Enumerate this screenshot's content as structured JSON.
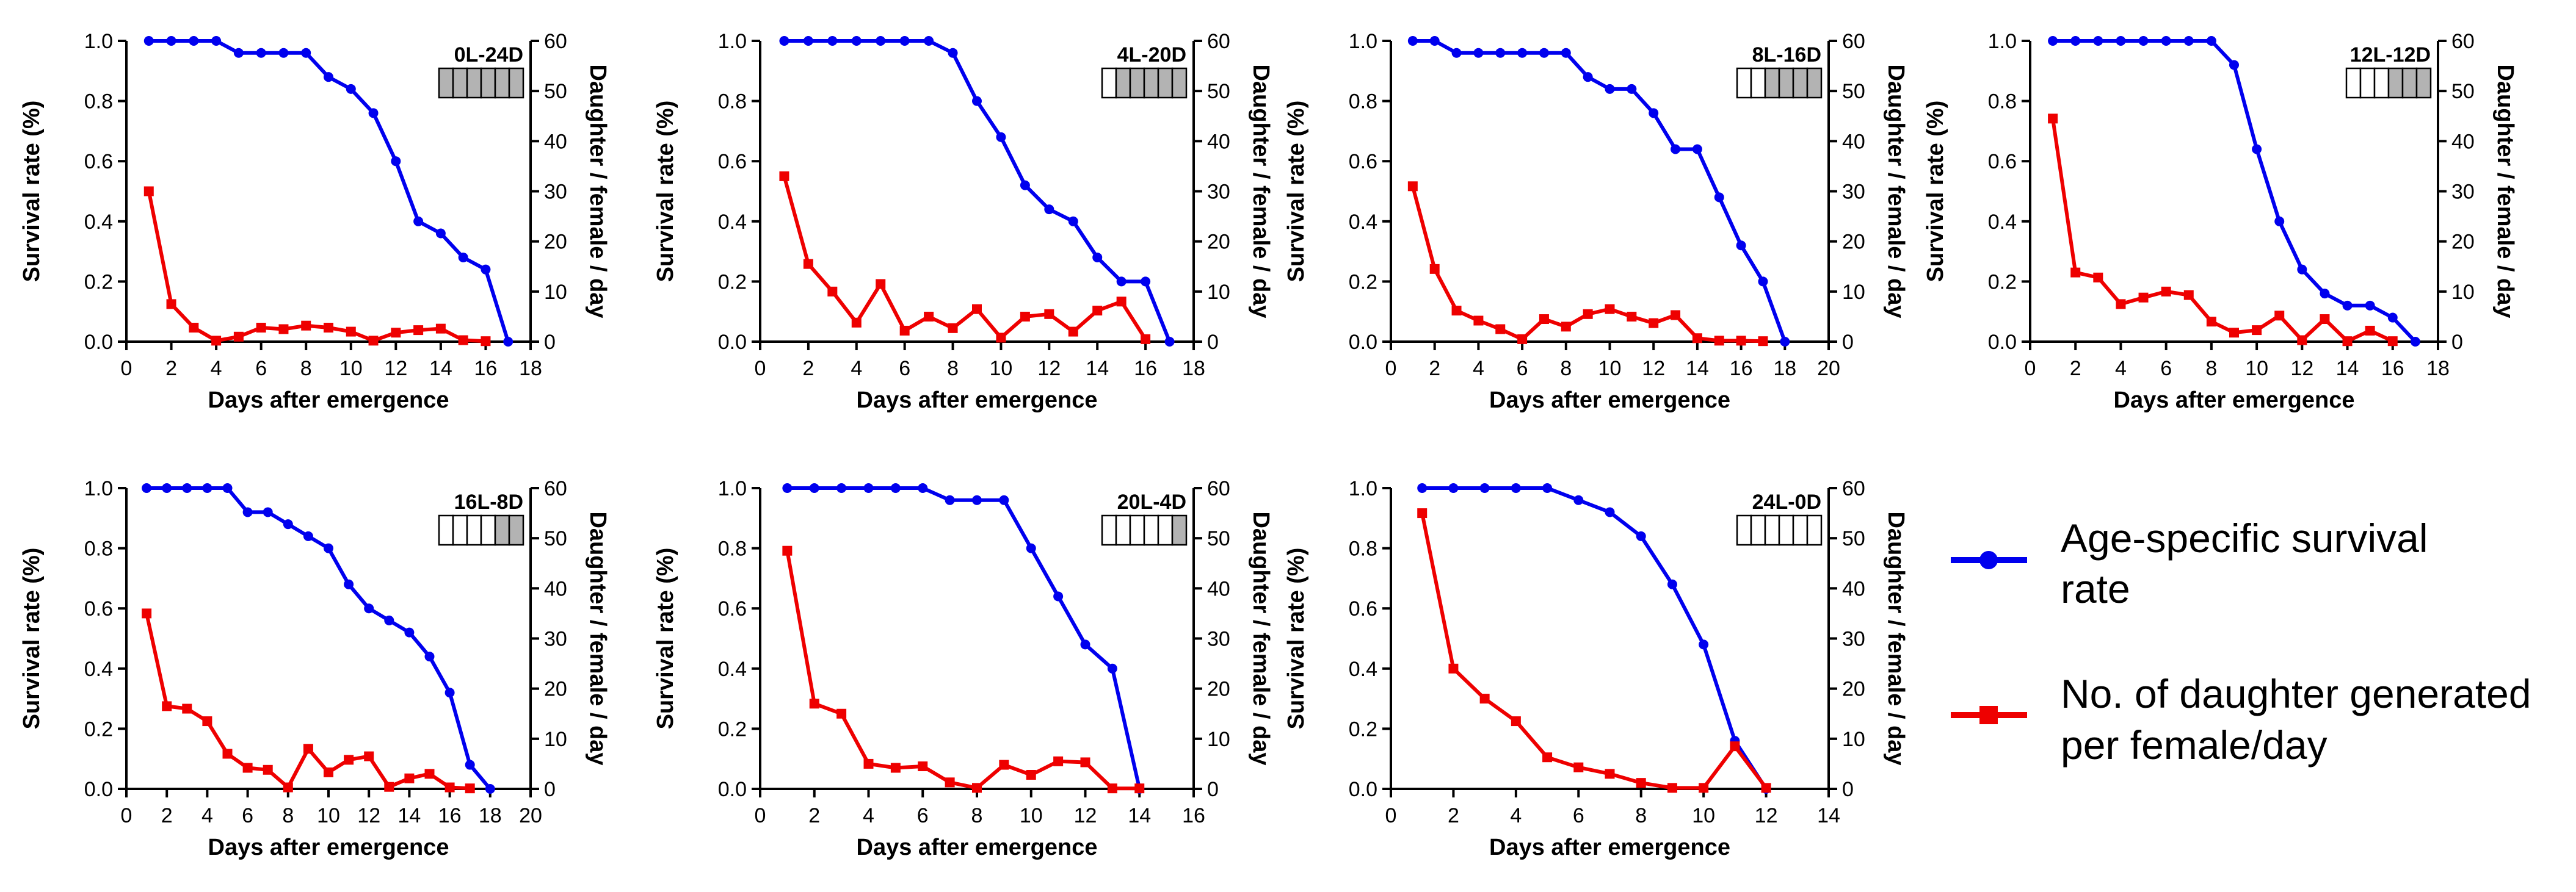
{
  "colors": {
    "survival": "#0000ee",
    "daughters": "#ee0000",
    "axis": "#000000",
    "dark": "#b3b3b3",
    "light": "#ffffff"
  },
  "legend": {
    "survival_lines": [
      "Age-specific survival",
      "rate"
    ],
    "daughters_lines": [
      "No. of daughter generated",
      "per female/day"
    ]
  },
  "chart_data": [
    {
      "type": "line",
      "photoperiod": "0L-24D",
      "light_hours": 0,
      "x_label": "Days after emergence",
      "y_label_left": "Survival rate (%)",
      "y_label_right": "Daughter / female / day",
      "xlim": [
        0,
        18
      ],
      "x_ticks": [
        0,
        2,
        4,
        6,
        8,
        10,
        12,
        14,
        16,
        18
      ],
      "ylim_left": [
        0,
        1.0
      ],
      "y_ticks_left": [
        "0.0",
        "0.2",
        "0.4",
        "0.6",
        "0.8",
        "1.0"
      ],
      "ylim_right": [
        0,
        60
      ],
      "y_ticks_right": [
        0,
        10,
        20,
        30,
        40,
        50,
        60
      ],
      "series": [
        {
          "name": "Age-specific survival rate",
          "axis": "left",
          "marker": "circle",
          "x": [
            1,
            2,
            3,
            4,
            5,
            6,
            7,
            8,
            9,
            10,
            11,
            12,
            13,
            14,
            15,
            16,
            17
          ],
          "y": [
            1.0,
            1.0,
            1.0,
            1.0,
            0.96,
            0.96,
            0.96,
            0.96,
            0.88,
            0.84,
            0.76,
            0.6,
            0.4,
            0.36,
            0.28,
            0.24,
            0.0
          ]
        },
        {
          "name": "No. of daughter generated per female/day",
          "axis": "right",
          "marker": "square",
          "x": [
            1,
            2,
            3,
            4,
            5,
            6,
            7,
            8,
            9,
            10,
            11,
            12,
            13,
            14,
            15,
            16
          ],
          "y": [
            30,
            7.5,
            2.8,
            0.2,
            1.0,
            2.8,
            2.5,
            3.2,
            2.8,
            2.0,
            0.2,
            1.8,
            2.3,
            2.6,
            0.3,
            0.1
          ]
        }
      ]
    },
    {
      "type": "line",
      "photoperiod": "4L-20D",
      "light_hours": 4,
      "x_label": "Days after emergence",
      "y_label_left": "Survival rate (%)",
      "y_label_right": "Daughter / female / day",
      "xlim": [
        0,
        18
      ],
      "x_ticks": [
        0,
        2,
        4,
        6,
        8,
        10,
        12,
        14,
        16,
        18
      ],
      "ylim_left": [
        0,
        1.0
      ],
      "y_ticks_left": [
        "0.0",
        "0.2",
        "0.4",
        "0.6",
        "0.8",
        "1.0"
      ],
      "ylim_right": [
        0,
        60
      ],
      "y_ticks_right": [
        0,
        10,
        20,
        30,
        40,
        50,
        60
      ],
      "series": [
        {
          "name": "Age-specific survival rate",
          "axis": "left",
          "marker": "circle",
          "x": [
            1,
            2,
            3,
            4,
            5,
            6,
            7,
            8,
            9,
            10,
            11,
            12,
            13,
            14,
            15,
            16,
            17
          ],
          "y": [
            1.0,
            1.0,
            1.0,
            1.0,
            1.0,
            1.0,
            1.0,
            0.96,
            0.8,
            0.68,
            0.52,
            0.44,
            0.4,
            0.28,
            0.2,
            0.2,
            0.0
          ]
        },
        {
          "name": "No. of daughter generated per female/day",
          "axis": "right",
          "marker": "square",
          "x": [
            1,
            2,
            3,
            4,
            5,
            6,
            7,
            8,
            9,
            10,
            11,
            12,
            13,
            14,
            15,
            16
          ],
          "y": [
            33,
            15.5,
            10,
            3.8,
            11.5,
            2.2,
            5,
            2.7,
            6.5,
            0.8,
            5,
            5.5,
            2,
            6.2,
            8,
            0.5
          ]
        }
      ]
    },
    {
      "type": "line",
      "photoperiod": "8L-16D",
      "light_hours": 8,
      "x_label": "Days after emergence",
      "y_label_left": "Survival rate (%)",
      "y_label_right": "Daughter / female / day",
      "xlim": [
        0,
        20
      ],
      "x_ticks": [
        0,
        2,
        4,
        6,
        8,
        10,
        12,
        14,
        16,
        18,
        20
      ],
      "ylim_left": [
        0,
        1.0
      ],
      "y_ticks_left": [
        "0.0",
        "0.2",
        "0.4",
        "0.6",
        "0.8",
        "1.0"
      ],
      "ylim_right": [
        0,
        60
      ],
      "y_ticks_right": [
        0,
        10,
        20,
        30,
        40,
        50,
        60
      ],
      "series": [
        {
          "name": "Age-specific survival rate",
          "axis": "left",
          "marker": "circle",
          "x": [
            1,
            2,
            3,
            4,
            5,
            6,
            7,
            8,
            9,
            10,
            11,
            12,
            13,
            14,
            15,
            16,
            17,
            18
          ],
          "y": [
            1.0,
            1.0,
            0.96,
            0.96,
            0.96,
            0.96,
            0.96,
            0.96,
            0.88,
            0.84,
            0.84,
            0.76,
            0.64,
            0.64,
            0.48,
            0.32,
            0.2,
            0.0
          ]
        },
        {
          "name": "No. of daughter generated per female/day",
          "axis": "right",
          "marker": "square",
          "x": [
            1,
            2,
            3,
            4,
            5,
            6,
            7,
            8,
            9,
            10,
            11,
            12,
            13,
            14,
            15,
            16,
            17
          ],
          "y": [
            31,
            14.5,
            6.2,
            4.2,
            2.5,
            0.5,
            4.5,
            3,
            5.5,
            6.5,
            5,
            3.7,
            5.3,
            0.7,
            0.2,
            0.2,
            0.1
          ]
        }
      ]
    },
    {
      "type": "line",
      "photoperiod": "12L-12D",
      "light_hours": 12,
      "x_label": "Days after emergence",
      "y_label_left": "Survival rate (%)",
      "y_label_right": "Daughter / female / day",
      "xlim": [
        0,
        18
      ],
      "x_ticks": [
        0,
        2,
        4,
        6,
        8,
        10,
        12,
        14,
        16,
        18
      ],
      "ylim_left": [
        0,
        1.0
      ],
      "y_ticks_left": [
        "0.0",
        "0.2",
        "0.4",
        "0.6",
        "0.8",
        "1.0"
      ],
      "ylim_right": [
        0,
        60
      ],
      "y_ticks_right": [
        0,
        10,
        20,
        30,
        40,
        50,
        60
      ],
      "series": [
        {
          "name": "Age-specific survival rate",
          "axis": "left",
          "marker": "circle",
          "x": [
            1,
            2,
            3,
            4,
            5,
            6,
            7,
            8,
            9,
            10,
            11,
            12,
            13,
            14,
            15,
            16,
            17
          ],
          "y": [
            1.0,
            1.0,
            1.0,
            1.0,
            1.0,
            1.0,
            1.0,
            1.0,
            0.92,
            0.64,
            0.4,
            0.24,
            0.16,
            0.12,
            0.12,
            0.08,
            0.0
          ]
        },
        {
          "name": "No. of daughter generated per female/day",
          "axis": "right",
          "marker": "square",
          "x": [
            1,
            2,
            3,
            4,
            5,
            6,
            7,
            8,
            9,
            10,
            11,
            12,
            13,
            14,
            15,
            16
          ],
          "y": [
            44.5,
            13.8,
            12.8,
            7.5,
            8.8,
            10,
            9.3,
            4,
            1.8,
            2.3,
            5.2,
            0.3,
            4.5,
            0.1,
            2.2,
            0.1
          ]
        }
      ]
    },
    {
      "type": "line",
      "photoperiod": "16L-8D",
      "light_hours": 16,
      "x_label": "Days after emergence",
      "y_label_left": "Survival rate (%)",
      "y_label_right": "Daughter / female / day",
      "xlim": [
        0,
        20
      ],
      "x_ticks": [
        0,
        2,
        4,
        6,
        8,
        10,
        12,
        14,
        16,
        18,
        20
      ],
      "ylim_left": [
        0,
        1.0
      ],
      "y_ticks_left": [
        "0.0",
        "0.2",
        "0.4",
        "0.6",
        "0.8",
        "1.0"
      ],
      "ylim_right": [
        0,
        60
      ],
      "y_ticks_right": [
        0,
        10,
        20,
        30,
        40,
        50,
        60
      ],
      "series": [
        {
          "name": "Age-specific survival rate",
          "axis": "left",
          "marker": "circle",
          "x": [
            1,
            2,
            3,
            4,
            5,
            6,
            7,
            8,
            9,
            10,
            11,
            12,
            13,
            14,
            15,
            16,
            17,
            18
          ],
          "y": [
            1.0,
            1.0,
            1.0,
            1.0,
            1.0,
            0.92,
            0.92,
            0.88,
            0.84,
            0.8,
            0.68,
            0.6,
            0.56,
            0.52,
            0.44,
            0.32,
            0.08,
            0.0
          ]
        },
        {
          "name": "No. of daughter generated per female/day",
          "axis": "right",
          "marker": "square",
          "x": [
            1,
            2,
            3,
            4,
            5,
            6,
            7,
            8,
            9,
            10,
            11,
            12,
            13,
            14,
            15,
            16,
            17
          ],
          "y": [
            35,
            16.5,
            16,
            13.5,
            7,
            4.2,
            3.8,
            0.3,
            8,
            3.3,
            5.8,
            6.5,
            0.4,
            2.1,
            3,
            0.3,
            0.1
          ]
        }
      ]
    },
    {
      "type": "line",
      "photoperiod": "20L-4D",
      "light_hours": 20,
      "x_label": "Days after emergence",
      "y_label_left": "Survival rate (%)",
      "y_label_right": "Daughter / female / day",
      "xlim": [
        0,
        16
      ],
      "x_ticks": [
        0,
        2,
        4,
        6,
        8,
        10,
        12,
        14,
        16
      ],
      "ylim_left": [
        0,
        1.0
      ],
      "y_ticks_left": [
        "0.0",
        "0.2",
        "0.4",
        "0.6",
        "0.8",
        "1.0"
      ],
      "ylim_right": [
        0,
        60
      ],
      "y_ticks_right": [
        0,
        10,
        20,
        30,
        40,
        50,
        60
      ],
      "series": [
        {
          "name": "Age-specific survival rate",
          "axis": "left",
          "marker": "circle",
          "x": [
            1,
            2,
            3,
            4,
            5,
            6,
            7,
            8,
            9,
            10,
            11,
            12,
            13,
            14
          ],
          "y": [
            1.0,
            1.0,
            1.0,
            1.0,
            1.0,
            1.0,
            0.96,
            0.96,
            0.96,
            0.8,
            0.64,
            0.48,
            0.4,
            0.0
          ]
        },
        {
          "name": "No. of daughter generated per female/day",
          "axis": "right",
          "marker": "square",
          "x": [
            1,
            2,
            3,
            4,
            5,
            6,
            7,
            8,
            9,
            10,
            11,
            12,
            13,
            14
          ],
          "y": [
            47.5,
            17,
            15,
            5,
            4.2,
            4.5,
            1.3,
            0.2,
            4.8,
            2.8,
            5.5,
            5.3,
            0.1,
            0.1
          ]
        }
      ]
    },
    {
      "type": "line",
      "photoperiod": "24L-0D",
      "light_hours": 24,
      "x_label": "Days after emergence",
      "y_label_left": "Survival rate (%)",
      "y_label_right": "Daughter / female / day",
      "xlim": [
        0,
        14
      ],
      "x_ticks": [
        0,
        2,
        4,
        6,
        8,
        10,
        12,
        14
      ],
      "ylim_left": [
        0,
        1.0
      ],
      "y_ticks_left": [
        "0.0",
        "0.2",
        "0.4",
        "0.6",
        "0.8",
        "1.0"
      ],
      "ylim_right": [
        0,
        60
      ],
      "y_ticks_right": [
        0,
        10,
        20,
        30,
        40,
        50,
        60
      ],
      "series": [
        {
          "name": "Age-specific survival rate",
          "axis": "left",
          "marker": "circle",
          "x": [
            1,
            2,
            3,
            4,
            5,
            6,
            7,
            8,
            9,
            10,
            11,
            12
          ],
          "y": [
            1.0,
            1.0,
            1.0,
            1.0,
            1.0,
            0.96,
            0.92,
            0.84,
            0.68,
            0.48,
            0.16,
            0.0
          ]
        },
        {
          "name": "No. of daughter generated per female/day",
          "axis": "right",
          "marker": "square",
          "x": [
            1,
            2,
            3,
            4,
            5,
            6,
            7,
            8,
            9,
            10,
            11,
            12
          ],
          "y": [
            55,
            24,
            18,
            13.5,
            6.3,
            4.3,
            3,
            1.2,
            0.2,
            0.2,
            8.5,
            0.2
          ]
        }
      ]
    }
  ]
}
